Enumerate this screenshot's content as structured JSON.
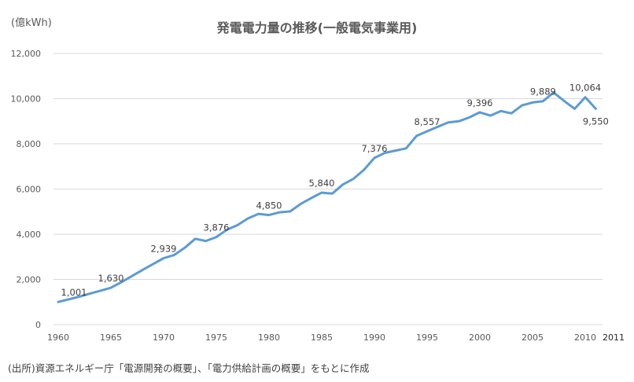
{
  "header": {
    "unit_label": "(億kWh)",
    "title": "発電電力量の推移(一般電気事業用)"
  },
  "footer": {
    "source_note": "(出所)資源エネルギー庁「電源開発の概要」、「電力供給計画の概要」をもとに作成"
  },
  "colors": {
    "series": "#5b9bd5",
    "grid": "#d9d9d9",
    "text": "#595959"
  },
  "chart_data": {
    "type": "line",
    "title": "発電電力量の推移(一般電気事業用)",
    "xlabel": "",
    "ylabel": "(億kWh)",
    "ylim": [
      0,
      12000
    ],
    "yticks": [
      0,
      2000,
      4000,
      6000,
      8000,
      10000,
      12000
    ],
    "ytick_labels": [
      "0",
      "2,000",
      "4,000",
      "6,000",
      "8,000",
      "10,000",
      "12,000"
    ],
    "xticks": [
      1960,
      1965,
      1970,
      1975,
      1980,
      1985,
      1990,
      1995,
      2000,
      2005,
      2010
    ],
    "xtick_labels": [
      "1960",
      "1965",
      "1970",
      "1975",
      "1980",
      "1985",
      "1990",
      "1995",
      "2000",
      "2005",
      "2010"
    ],
    "x_last_label": "2011",
    "grid": true,
    "legend": "none",
    "series": [
      {
        "name": "発電電力量",
        "x": [
          1960,
          1961,
          1962,
          1963,
          1964,
          1965,
          1966,
          1967,
          1968,
          1969,
          1970,
          1971,
          1972,
          1973,
          1974,
          1975,
          1976,
          1977,
          1978,
          1979,
          1980,
          1981,
          1982,
          1983,
          1984,
          1985,
          1986,
          1987,
          1988,
          1989,
          1990,
          1991,
          1992,
          1993,
          1994,
          1995,
          1996,
          1997,
          1998,
          1999,
          2000,
          2001,
          2002,
          2003,
          2004,
          2005,
          2006,
          2007,
          2008,
          2009,
          2010,
          2011
        ],
        "values": [
          1001,
          1120,
          1240,
          1370,
          1500,
          1630,
          1880,
          2150,
          2420,
          2680,
          2939,
          3080,
          3400,
          3800,
          3700,
          3876,
          4200,
          4400,
          4700,
          4900,
          4850,
          4970,
          5010,
          5340,
          5600,
          5840,
          5800,
          6200,
          6450,
          6850,
          7376,
          7600,
          7700,
          7800,
          8350,
          8557,
          8750,
          8950,
          9000,
          9170,
          9396,
          9250,
          9450,
          9350,
          9700,
          9830,
          9889,
          10270,
          9900,
          9550,
          10064,
          9550
        ]
      }
    ],
    "data_labels": [
      {
        "x": 1960,
        "label": "1,001"
      },
      {
        "x": 1965,
        "label": "1,630"
      },
      {
        "x": 1970,
        "label": "2,939"
      },
      {
        "x": 1975,
        "label": "3,876"
      },
      {
        "x": 1980,
        "label": "4,850"
      },
      {
        "x": 1985,
        "label": "5,840"
      },
      {
        "x": 1990,
        "label": "7,376"
      },
      {
        "x": 1995,
        "label": "8,557"
      },
      {
        "x": 2000,
        "label": "9,396"
      },
      {
        "x": 2006,
        "label": "9,889"
      },
      {
        "x": 2010,
        "label": "10,064"
      },
      {
        "x": 2011,
        "label": "9,550",
        "below": true
      }
    ]
  }
}
